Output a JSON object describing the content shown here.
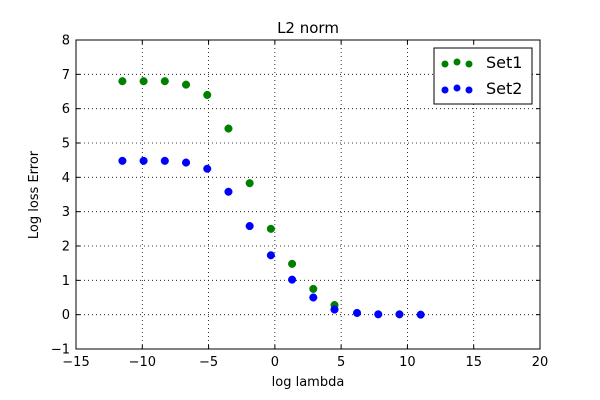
{
  "chart_data": {
    "type": "scatter",
    "title": "L2 norm",
    "xlabel": "log lambda",
    "ylabel": "Log loss Error",
    "xlim": [
      -15,
      20
    ],
    "ylim": [
      -1,
      8
    ],
    "xticks": [
      -15,
      -10,
      -5,
      0,
      5,
      10,
      15,
      20
    ],
    "yticks": [
      -1,
      0,
      1,
      2,
      3,
      4,
      5,
      6,
      7,
      8
    ],
    "xtick_labels": [
      "−15",
      "−10",
      "−5",
      "0",
      "5",
      "10",
      "15",
      "20"
    ],
    "ytick_labels": [
      "−1",
      "0",
      "1",
      "2",
      "3",
      "4",
      "5",
      "6",
      "7",
      "8"
    ],
    "grid": true,
    "legend_position": "top-right",
    "series": [
      {
        "name": "Set1",
        "color": "#008000",
        "x": [
          -11.5,
          -9.9,
          -8.3,
          -6.7,
          -5.1,
          -3.5,
          -1.9,
          -0.3,
          1.3,
          2.9,
          4.5
        ],
        "y": [
          6.8,
          6.8,
          6.8,
          6.7,
          6.4,
          5.42,
          3.83,
          2.5,
          1.48,
          0.75,
          0.28
        ]
      },
      {
        "name": "Set2",
        "color": "#0000ff",
        "x": [
          -11.5,
          -9.9,
          -8.3,
          -6.7,
          -5.1,
          -3.5,
          -1.9,
          -0.3,
          1.3,
          2.9,
          4.5,
          6.2,
          7.8,
          9.4,
          11.0
        ],
        "y": [
          4.48,
          4.48,
          4.48,
          4.43,
          4.25,
          3.58,
          2.58,
          1.73,
          1.02,
          0.5,
          0.15,
          0.05,
          0.01,
          0.01,
          0.0
        ]
      }
    ]
  }
}
